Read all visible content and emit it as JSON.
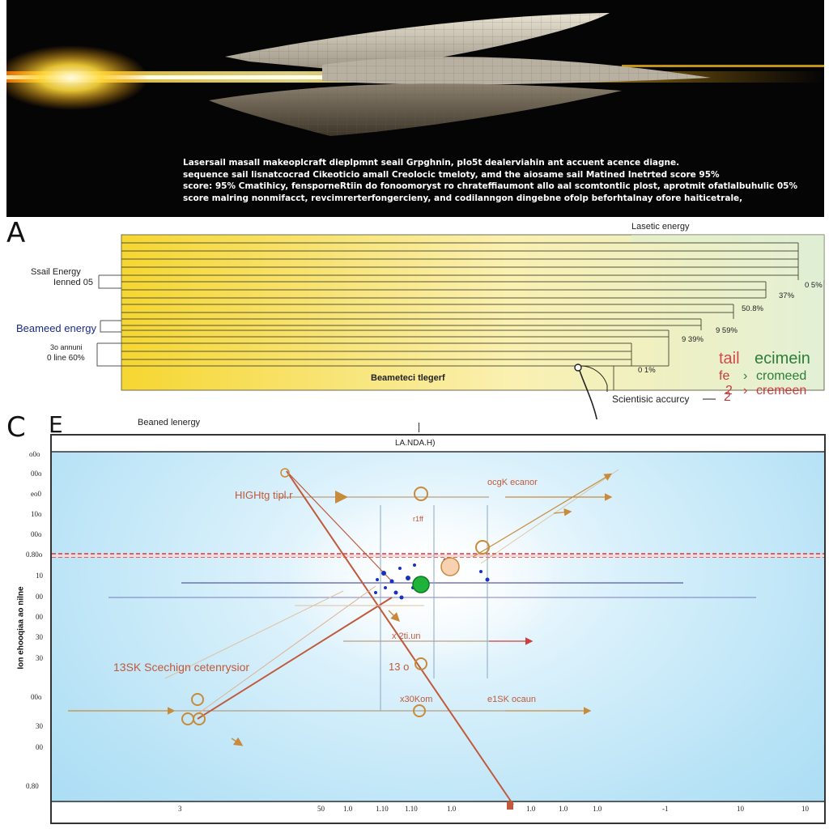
{
  "hero": {
    "caption_lines": [
      "Lasersail masall makeoplcraft dieplpmnt seail Grpghnin,  pIo5t dealerviahin ant accuent acence diagne.",
      "sequence sail lisnatcocrad Cikeoticio amall Creolocic tmeloty, amd the aiosame sail  Matined Inetrted score 95%",
      "score: 95%  Cmatihicy, fensporneRtiin do fonoomoryst ro chrateffiaumont allo aal scomtontlic plost, aprotmit ofatlalbuhulic 05%",
      "score malring nonmifacct, revcimrerterfongercieny, and codilanngon dingebne ofolp beforhtalnay ofore haiticetrale,"
    ]
  },
  "panel_a": {
    "letter": "A",
    "header": "Lasetic energy",
    "left_labels": {
      "sail_energy": "Ssail Energy",
      "sail_energy_sub": "Ienned 05",
      "beamed": "Beameed energy",
      "third_a": "3o annuni",
      "third_b": "0 line 60%"
    },
    "bar_label": "Beameteci tlegerf",
    "pct_labels": [
      "0 5%",
      "37%",
      "50.8%",
      "9 59%",
      "9 39%",
      "0 1%"
    ],
    "callout": "Scientisic accurcy",
    "callout_num": "2"
  },
  "legend": {
    "tail": "tail",
    "ecimein": "ecimein",
    "fe": "fe",
    "arrow": "›",
    "cromeed": "cromeed",
    "two": "2",
    "cremeen": "cremeen"
  },
  "panel_c": {
    "letter_c": "C",
    "letter_e": "E",
    "subtitle": "Beaned lenergy",
    "header": "LA.NDA.H)",
    "ylabel": "Ion ehooqiaa ao nilne",
    "yticks": [
      "o0o",
      "00o",
      "eo0",
      "10o",
      "00o",
      "0.80o",
      "10",
      "00",
      "00",
      "30",
      "30",
      "00o",
      "30",
      "00",
      "0.80"
    ],
    "xticks": [
      "3",
      "50",
      "1.0",
      "1.10",
      "1.10",
      "1.0",
      "1.0",
      "1.0",
      "1.0",
      "-1",
      "10",
      "10"
    ],
    "annotations": {
      "a1": "HIGHtg tipl.r",
      "a2": "ocgK ecanor",
      "a3": "13SK Scechign cetenrysior",
      "a4": "x 2ti.un",
      "a5": "13 o",
      "a6": "x30Kom",
      "a7": "e1SK ocaun",
      "a8": "r1ff"
    }
  },
  "colors": {
    "bar_yellow": "#f6d630",
    "bar_green": "#dfeecf",
    "beam_orange": "#c1593a",
    "beam_blue": "#1c2fbd",
    "highlight_green": "#1fb33a",
    "dashed_red": "#d43a3a"
  }
}
